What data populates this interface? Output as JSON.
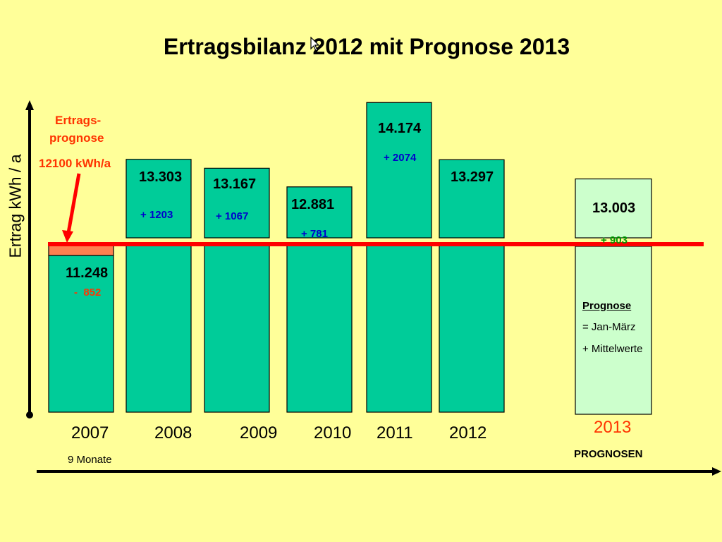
{
  "chart_data": {
    "type": "bar",
    "title": "Ertragsbilanz 2012 mit Prognose 2013",
    "ylabel": "Ertrag kWh / a",
    "xlabel": "",
    "reference_line": {
      "value": 12100,
      "label_line1": "Ertrags-",
      "label_line2": "prognose",
      "label_value": "12100 kWh/a",
      "color": "#FF0000"
    },
    "categories": [
      "2007",
      "2008",
      "2009",
      "2010",
      "2011",
      "2012",
      "2013"
    ],
    "values": [
      11248,
      13303,
      13167,
      12881,
      14174,
      13297,
      13003
    ],
    "value_labels": [
      "11.248",
      "13.303",
      "13.167",
      "12.881",
      "14.174",
      "13.297",
      "13.003"
    ],
    "diff_labels": [
      "-  852",
      "+ 1203",
      "+ 1067",
      "+ 781",
      "+ 2074",
      "",
      "+ 903"
    ],
    "diff_colors": [
      "#FF3300",
      "#0000CC",
      "#0000CC",
      "#0000CC",
      "#0000CC",
      "#0000CC",
      "#009900"
    ],
    "bar_types": [
      "actual",
      "actual",
      "actual",
      "actual",
      "actual",
      "actual",
      "forecast"
    ],
    "category_notes": {
      "2007": "9 Monate",
      "2013": "PROGNOSEN"
    },
    "forecast_note": {
      "heading": "Prognose",
      "line1": "= Jan-März",
      "line2": "+ Mittelwerte"
    },
    "colors": {
      "background": "#FFFF99",
      "actual_bar": "#00CC99",
      "forecast_bar": "#CCFFCC",
      "shortfall": "#FF7F50",
      "forecast_year": "#FF3300"
    },
    "grid": false,
    "legend": "none"
  }
}
